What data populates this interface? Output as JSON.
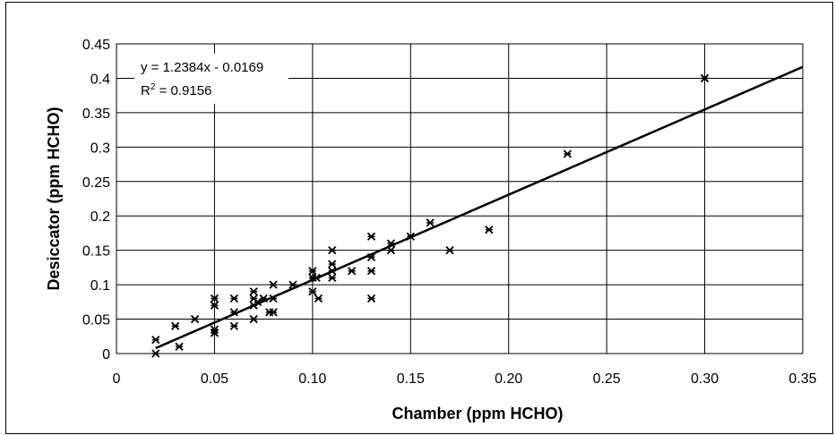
{
  "chart_data": {
    "type": "scatter",
    "xlabel": "Chamber (ppm HCHO)",
    "ylabel": "Desiccator (ppm HCHO)",
    "xlim": [
      0,
      0.35
    ],
    "ylim": [
      0,
      0.45
    ],
    "x_ticks": [
      "0",
      "0.05",
      "0.10",
      "0.15",
      "0.20",
      "0.25",
      "0.30",
      "0.35"
    ],
    "x_tick_values": [
      0,
      0.05,
      0.1,
      0.15,
      0.2,
      0.25,
      0.3,
      0.35
    ],
    "y_ticks": [
      "0",
      "0.05",
      "0.1",
      "0.15",
      "0.2",
      "0.25",
      "0.3",
      "0.35",
      "0.4",
      "0.45"
    ],
    "y_tick_values": [
      0,
      0.05,
      0.1,
      0.15,
      0.2,
      0.25,
      0.3,
      0.35,
      0.4,
      0.45
    ],
    "grid": "on",
    "marker": "asterisk",
    "points": [
      [
        0.02,
        0.0
      ],
      [
        0.02,
        0.02
      ],
      [
        0.03,
        0.04
      ],
      [
        0.032,
        0.01
      ],
      [
        0.04,
        0.05
      ],
      [
        0.05,
        0.03
      ],
      [
        0.05,
        0.035
      ],
      [
        0.05,
        0.07
      ],
      [
        0.05,
        0.08
      ],
      [
        0.06,
        0.04
      ],
      [
        0.06,
        0.06
      ],
      [
        0.06,
        0.08
      ],
      [
        0.07,
        0.05
      ],
      [
        0.07,
        0.07
      ],
      [
        0.07,
        0.08
      ],
      [
        0.07,
        0.09
      ],
      [
        0.072,
        0.075
      ],
      [
        0.075,
        0.08
      ],
      [
        0.078,
        0.06
      ],
      [
        0.08,
        0.06
      ],
      [
        0.08,
        0.08
      ],
      [
        0.08,
        0.1
      ],
      [
        0.09,
        0.1
      ],
      [
        0.1,
        0.09
      ],
      [
        0.1,
        0.11
      ],
      [
        0.1,
        0.12
      ],
      [
        0.102,
        0.11
      ],
      [
        0.103,
        0.08
      ],
      [
        0.11,
        0.11
      ],
      [
        0.11,
        0.12
      ],
      [
        0.11,
        0.13
      ],
      [
        0.11,
        0.15
      ],
      [
        0.12,
        0.12
      ],
      [
        0.13,
        0.08
      ],
      [
        0.13,
        0.12
      ],
      [
        0.13,
        0.14
      ],
      [
        0.13,
        0.17
      ],
      [
        0.14,
        0.15
      ],
      [
        0.14,
        0.16
      ],
      [
        0.15,
        0.17
      ],
      [
        0.16,
        0.19
      ],
      [
        0.17,
        0.15
      ],
      [
        0.19,
        0.18
      ],
      [
        0.23,
        0.29
      ],
      [
        0.3,
        0.4
      ]
    ],
    "trendline": {
      "slope": 1.2384,
      "intercept": -0.0169,
      "x_range": [
        0.02,
        0.35
      ]
    },
    "annotation": {
      "equation": "y = 1.2384x - 0.0169",
      "r2_prefix": "R",
      "r2_sup": "2",
      "r2_value": " = 0.9156"
    }
  }
}
